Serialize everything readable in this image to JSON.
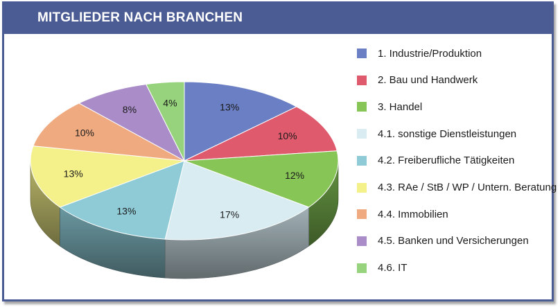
{
  "header": {
    "title": "MITGLIEDER NACH BRANCHEN"
  },
  "chart_data": {
    "type": "pie",
    "title": "MITGLIEDER NACH BRANCHEN",
    "style": "3d",
    "legend_position": "right",
    "slices": [
      {
        "name": "1. Industrie/Produktion",
        "value": 13,
        "label": "13%",
        "color": "#6b7fc4"
      },
      {
        "name": "2. Bau und Handwerk",
        "value": 10,
        "label": "10%",
        "color": "#e05a6d"
      },
      {
        "name": "3. Handel",
        "value": 12,
        "label": "12%",
        "color": "#86c556"
      },
      {
        "name": "4.1. sonstige Dienstleistungen",
        "value": 17,
        "label": "17%",
        "color": "#d8ecf2"
      },
      {
        "name": "4.2. Freiberufliche Tätigkeiten",
        "value": 13,
        "label": "13%",
        "color": "#8ecbd6"
      },
      {
        "name": "4.3. RAe / StB / WP / Untern. Beratung",
        "value": 13,
        "label": "13%",
        "color": "#f4f08a"
      },
      {
        "name": "4.4. Immobilien",
        "value": 10,
        "label": "10%",
        "color": "#f0aa80"
      },
      {
        "name": "4.5. Banken und Versicherungen",
        "value": 8,
        "label": "8%",
        "color": "#a98cc8"
      },
      {
        "name": "4.6. IT",
        "value": 4,
        "label": "4%",
        "color": "#97d37d"
      }
    ]
  }
}
